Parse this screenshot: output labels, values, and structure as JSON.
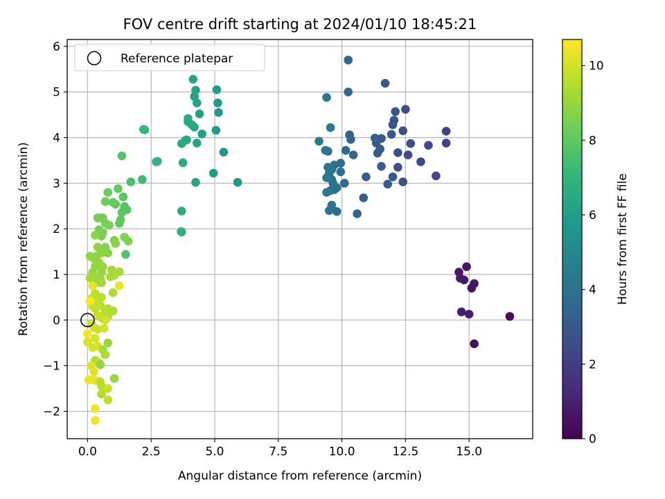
{
  "chart_data": {
    "type": "scatter",
    "title": "FOV centre drift starting at 2024/01/10 18:45:21",
    "xlabel": "Angular distance from reference (arcmin)",
    "ylabel": "Rotation from reference (arcmin)",
    "xlim": [
      -0.8,
      17.5
    ],
    "ylim": [
      -2.6,
      6.15
    ],
    "xticks": [
      0.0,
      2.5,
      5.0,
      7.5,
      10.0,
      12.5,
      15.0
    ],
    "xtick_labels": [
      "0.0",
      "2.5",
      "5.0",
      "7.5",
      "10.0",
      "12.5",
      "15.0"
    ],
    "yticks": [
      -2,
      -1,
      0,
      1,
      2,
      3,
      4,
      5,
      6
    ],
    "ytick_labels": [
      "−2",
      "−1",
      "0",
      "1",
      "2",
      "3",
      "4",
      "5",
      "6"
    ],
    "grid": true,
    "legend": {
      "placement": "top-left",
      "entries": [
        {
          "label": "Reference platepar",
          "marker": "open-circle"
        }
      ]
    },
    "reference_point": {
      "x": 0.0,
      "y": 0.0
    },
    "colorbar": {
      "label": "Hours from first FF file",
      "range": [
        0,
        10.7
      ],
      "ticks": [
        0,
        2,
        4,
        6,
        8,
        10
      ],
      "tick_labels": [
        "0",
        "2",
        "4",
        "6",
        "8",
        "10"
      ],
      "colormap": "viridis",
      "stops": [
        "#440154",
        "#482878",
        "#3e4989",
        "#31688e",
        "#26828e",
        "#1f9e89",
        "#35b779",
        "#6ece58",
        "#b5de2b",
        "#fde725"
      ]
    },
    "points": [
      [
        16.6,
        0.08,
        0.3
      ],
      [
        15.2,
        -0.52,
        0.4
      ],
      [
        14.9,
        1.17,
        0.6
      ],
      [
        15.2,
        0.8,
        0.6
      ],
      [
        15.1,
        0.7,
        0.6
      ],
      [
        14.6,
        1.05,
        0.7
      ],
      [
        14.8,
        0.88,
        0.7
      ],
      [
        14.65,
        0.92,
        0.8
      ],
      [
        14.7,
        0.18,
        0.8
      ],
      [
        15.0,
        0.13,
        0.9
      ],
      [
        14.1,
        4.14,
        2.2
      ],
      [
        14.1,
        3.88,
        2.2
      ],
      [
        13.7,
        3.16,
        2.3
      ],
      [
        13.4,
        3.83,
        2.4
      ],
      [
        13.1,
        3.47,
        2.4
      ],
      [
        12.7,
        3.87,
        2.5
      ],
      [
        12.6,
        3.62,
        2.5
      ],
      [
        12.5,
        4.62,
        2.6
      ],
      [
        12.4,
        4.15,
        2.6
      ],
      [
        12.4,
        3.03,
        2.6
      ],
      [
        12.2,
        3.67,
        2.7
      ],
      [
        12.2,
        3.35,
        2.7
      ],
      [
        12.1,
        4.57,
        2.8
      ],
      [
        12.05,
        4.38,
        2.8
      ],
      [
        12.0,
        4.28,
        2.8
      ],
      [
        11.95,
        4.07,
        2.9
      ],
      [
        12.0,
        3.14,
        2.9
      ],
      [
        11.8,
        2.98,
        2.9
      ],
      [
        11.7,
        5.19,
        3.0
      ],
      [
        11.55,
        3.98,
        3.0
      ],
      [
        11.5,
        3.75,
        3.0
      ],
      [
        11.55,
        3.37,
        3.1
      ],
      [
        11.4,
        3.66,
        3.1
      ],
      [
        11.35,
        3.88,
        3.1
      ],
      [
        11.3,
        3.99,
        3.2
      ],
      [
        10.95,
        3.14,
        3.2
      ],
      [
        10.85,
        2.68,
        3.3
      ],
      [
        10.6,
        2.33,
        3.4
      ],
      [
        10.45,
        3.62,
        3.4
      ],
      [
        10.35,
        3.96,
        3.5
      ],
      [
        10.3,
        4.06,
        3.5
      ],
      [
        10.25,
        5.0,
        3.6
      ],
      [
        10.25,
        5.7,
        3.6
      ],
      [
        10.15,
        3.72,
        3.7
      ],
      [
        10.1,
        3.0,
        3.7
      ],
      [
        9.95,
        3.25,
        3.8
      ],
      [
        9.95,
        3.44,
        3.8
      ],
      [
        9.8,
        2.9,
        3.9
      ],
      [
        9.8,
        2.38,
        3.9
      ],
      [
        9.7,
        2.86,
        3.9
      ],
      [
        9.7,
        3.4,
        4.0
      ],
      [
        9.65,
        3.0,
        4.0
      ],
      [
        9.6,
        3.3,
        4.0
      ],
      [
        9.6,
        3.08,
        4.1
      ],
      [
        9.6,
        2.52,
        4.1
      ],
      [
        9.55,
        2.84,
        4.1
      ],
      [
        9.5,
        3.22,
        4.2
      ],
      [
        9.5,
        2.4,
        4.2
      ],
      [
        9.45,
        3.7,
        4.2
      ],
      [
        9.45,
        3.35,
        4.3
      ],
      [
        9.4,
        3.12,
        4.3
      ],
      [
        9.4,
        2.8,
        4.3
      ],
      [
        9.4,
        4.88,
        4.4
      ],
      [
        9.35,
        3.72,
        4.4
      ],
      [
        9.55,
        4.22,
        4.5
      ],
      [
        9.1,
        3.92,
        4.5
      ],
      [
        5.9,
        3.02,
        5.6
      ],
      [
        5.35,
        3.68,
        5.7
      ],
      [
        5.15,
        4.55,
        5.8
      ],
      [
        5.12,
        4.76,
        5.8
      ],
      [
        5.08,
        5.05,
        5.9
      ],
      [
        5.05,
        4.16,
        5.9
      ],
      [
        4.95,
        3.22,
        6.0
      ],
      [
        4.5,
        4.08,
        6.1
      ],
      [
        4.4,
        4.52,
        6.1
      ],
      [
        4.3,
        4.76,
        6.2
      ],
      [
        4.25,
        5.04,
        6.2
      ],
      [
        4.2,
        4.9,
        6.2
      ],
      [
        4.15,
        5.28,
        6.3
      ],
      [
        4.25,
        3.02,
        6.3
      ],
      [
        4.3,
        3.88,
        6.3
      ],
      [
        4.2,
        4.23,
        6.4
      ],
      [
        4.1,
        4.28,
        6.4
      ],
      [
        3.95,
        4.35,
        6.4
      ],
      [
        3.95,
        4.42,
        6.5
      ],
      [
        3.85,
        3.94,
        6.5
      ],
      [
        3.9,
        3.95,
        6.5
      ],
      [
        3.75,
        3.45,
        6.6
      ],
      [
        3.7,
        3.87,
        6.6
      ],
      [
        3.7,
        2.39,
        6.7
      ],
      [
        3.7,
        1.93,
        6.7
      ],
      [
        3.68,
        1.94,
        6.8
      ],
      [
        2.75,
        3.48,
        6.9
      ],
      [
        2.7,
        3.47,
        7.0
      ],
      [
        2.25,
        4.17,
        7.1
      ],
      [
        2.2,
        4.18,
        7.2
      ],
      [
        2.15,
        3.08,
        7.3
      ],
      [
        1.7,
        3.03,
        7.6
      ],
      [
        1.5,
        1.44,
        7.7
      ],
      [
        1.45,
        2.49,
        7.8
      ],
      [
        1.35,
        3.6,
        7.8
      ],
      [
        1.45,
        2.44,
        7.8
      ],
      [
        1.4,
        2.7,
        7.9
      ],
      [
        1.35,
        2.36,
        7.9
      ],
      [
        1.55,
        2.42,
        7.9
      ],
      [
        1.3,
        2.2,
        8.0
      ],
      [
        1.25,
        2.12,
        8.0
      ],
      [
        1.2,
        2.88,
        8.1
      ],
      [
        1.1,
        2.54,
        8.1
      ],
      [
        1.0,
        2.58,
        8.2
      ],
      [
        0.8,
        2.8,
        8.2
      ],
      [
        0.7,
        2.6,
        8.3
      ],
      [
        0.6,
        2.24,
        8.3
      ],
      [
        0.5,
        2.24,
        8.3
      ],
      [
        0.4,
        2.24,
        8.4
      ],
      [
        0.45,
        1.98,
        8.4
      ],
      [
        0.6,
        1.92,
        8.4
      ],
      [
        0.7,
        2.12,
        8.5
      ],
      [
        0.85,
        2.08,
        8.5
      ],
      [
        0.55,
        1.84,
        8.5
      ],
      [
        1.45,
        1.82,
        8.6
      ],
      [
        1.6,
        1.73,
        8.6
      ],
      [
        1.05,
        1.75,
        8.6
      ],
      [
        1.1,
        1.68,
        8.7
      ],
      [
        0.7,
        1.6,
        8.7
      ],
      [
        0.8,
        1.47,
        8.7
      ],
      [
        0.55,
        1.47,
        8.8
      ],
      [
        0.4,
        1.6,
        8.8
      ],
      [
        0.3,
        1.86,
        8.8
      ],
      [
        0.35,
        1.4,
        8.8
      ],
      [
        0.25,
        1.35,
        8.9
      ],
      [
        0.1,
        1.4,
        8.9
      ],
      [
        0.3,
        1.18,
        8.9
      ],
      [
        0.45,
        1.26,
        9.0
      ],
      [
        0.6,
        1.17,
        9.0
      ],
      [
        0.55,
        1.05,
        9.0
      ],
      [
        0.5,
        0.92,
        9.1
      ],
      [
        0.4,
        0.83,
        9.1
      ],
      [
        0.2,
        1.05,
        9.1
      ],
      [
        0.25,
        0.92,
        9.1
      ],
      [
        0.1,
        0.92,
        9.2
      ],
      [
        0.55,
        0.82,
        9.2
      ],
      [
        0.95,
        1.1,
        9.2
      ],
      [
        1.05,
        0.98,
        9.3
      ],
      [
        0.9,
        0.95,
        9.3
      ],
      [
        1.25,
        1.06,
        9.3
      ],
      [
        1.0,
        0.6,
        9.4
      ],
      [
        1.0,
        0.2,
        9.4
      ],
      [
        0.8,
        0.25,
        9.4
      ],
      [
        0.8,
        0.08,
        9.5
      ],
      [
        0.6,
        0.03,
        9.5
      ],
      [
        0.7,
        0.22,
        9.5
      ],
      [
        0.55,
        0.5,
        9.6
      ],
      [
        0.45,
        0.45,
        9.6
      ],
      [
        0.3,
        0.58,
        9.6
      ],
      [
        0.35,
        0.34,
        9.7
      ],
      [
        0.5,
        0.32,
        9.7
      ],
      [
        0.5,
        0.08,
        9.7
      ],
      [
        0.4,
        0.1,
        9.8
      ],
      [
        0.3,
        0.25,
        9.8
      ],
      [
        0.2,
        0.3,
        9.8
      ],
      [
        0.15,
        0.47,
        9.8
      ],
      [
        0.15,
        -0.08,
        9.9
      ],
      [
        0.25,
        -0.16,
        9.9
      ],
      [
        0.4,
        -0.2,
        9.9
      ],
      [
        0.65,
        -0.18,
        10.0
      ],
      [
        0.7,
        0.0,
        10.0
      ],
      [
        0.3,
        -0.4,
        10.0
      ],
      [
        0.0,
        -0.48,
        10.1
      ],
      [
        0.2,
        -0.6,
        10.1
      ],
      [
        0.4,
        -0.57,
        10.1
      ],
      [
        0.8,
        -0.5,
        9.0
      ],
      [
        0.7,
        -0.76,
        9.4
      ],
      [
        0.6,
        -0.65,
        9.3
      ],
      [
        0.3,
        -0.88,
        9.5
      ],
      [
        0.45,
        -0.94,
        9.6
      ],
      [
        0.5,
        -0.98,
        9.0
      ],
      [
        0.15,
        -1.0,
        10.2
      ],
      [
        0.25,
        -1.13,
        10.2
      ],
      [
        0.35,
        -1.33,
        10.3
      ],
      [
        0.2,
        -1.3,
        10.3
      ],
      [
        0.05,
        -1.31,
        10.4
      ],
      [
        0.5,
        -1.35,
        9.7
      ],
      [
        0.55,
        -1.45,
        9.6
      ],
      [
        0.8,
        -1.5,
        9.8
      ],
      [
        0.55,
        -1.62,
        9.5
      ],
      [
        0.8,
        -1.75,
        9.7
      ],
      [
        1.05,
        -1.28,
        9.0
      ],
      [
        0.3,
        -1.94,
        10.5
      ],
      [
        0.3,
        -2.2,
        10.5
      ],
      [
        1.25,
        0.75,
        10.4
      ],
      [
        0.2,
        0.75,
        10.3
      ],
      [
        0.1,
        0.42,
        10.6
      ],
      [
        0.0,
        -0.3,
        10.5
      ]
    ]
  }
}
